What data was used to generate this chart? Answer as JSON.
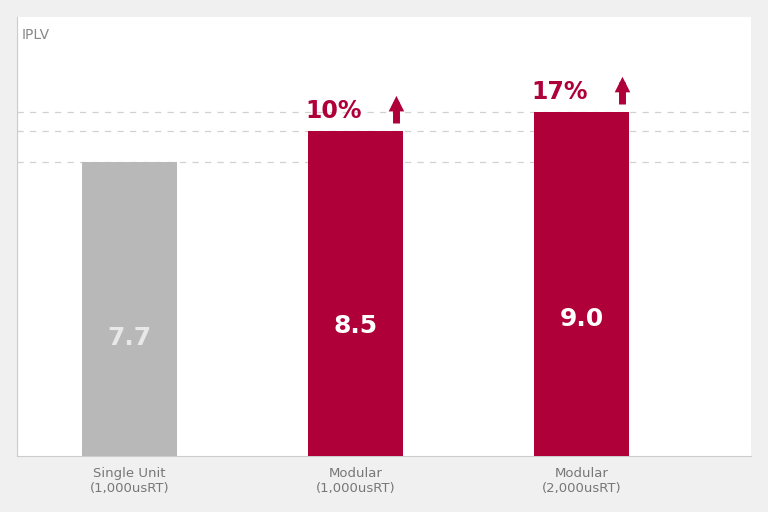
{
  "categories": [
    "Single Unit\n(1,000usRT)",
    "Modular\n(1,000usRT)",
    "Modular\n(2,000usRT)"
  ],
  "values": [
    7.7,
    8.5,
    9.0
  ],
  "bar_colors": [
    "#b8b8b8",
    "#b0003a",
    "#b0003a"
  ],
  "bar_label_colors": [
    "#e8e8e8",
    "#ffffff",
    "#ffffff"
  ],
  "bar_labels": [
    "7.7",
    "8.5",
    "9.0"
  ],
  "percentage_labels": [
    "",
    "10%",
    "17%"
  ],
  "percentage_color": "#b0003a",
  "arrow_color": "#b0003a",
  "ylabel": "IPLV",
  "bg_color": "#f0f0f0",
  "plot_bg_color": "#ffffff",
  "ylim_top": 11.5,
  "ylim_bottom": 0,
  "grid_color": "#cccccc",
  "bar_width": 0.42,
  "spine_color": "#cccccc",
  "tick_color": "#888888",
  "x_positions": [
    1,
    2,
    3
  ],
  "xlim": [
    0.5,
    3.75
  ]
}
